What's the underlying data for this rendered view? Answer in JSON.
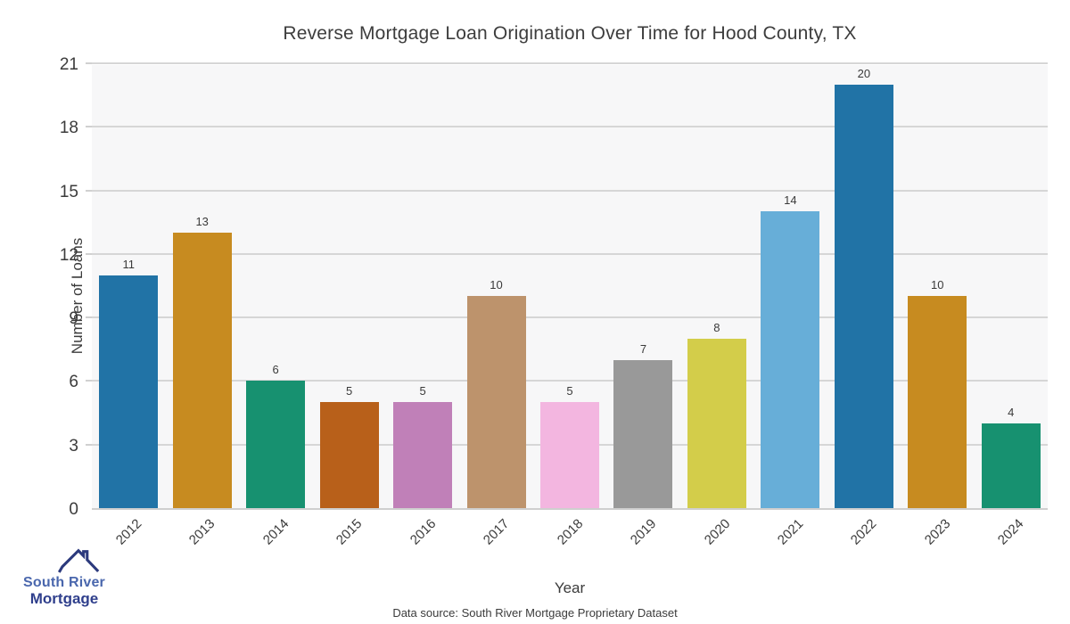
{
  "chart_data": {
    "type": "bar",
    "title": "Reverse Mortgage Loan Origination Over Time for Hood County, TX",
    "xlabel": "Year",
    "ylabel": "Number of Loans",
    "categories": [
      "2012",
      "2013",
      "2014",
      "2015",
      "2016",
      "2017",
      "2018",
      "2019",
      "2020",
      "2021",
      "2022",
      "2023",
      "2024"
    ],
    "values": [
      11,
      13,
      6,
      5,
      5,
      10,
      5,
      7,
      8,
      14,
      20,
      10,
      4
    ],
    "bar_colors": [
      "#2173a6",
      "#c78b20",
      "#179170",
      "#b8601a",
      "#c080b8",
      "#bd936c",
      "#f3b6e0",
      "#999999",
      "#d3cd4a",
      "#67aed8",
      "#2173a6",
      "#c78b20",
      "#179170"
    ],
    "ylim": [
      0,
      21
    ],
    "yticks": [
      0,
      3,
      6,
      9,
      12,
      15,
      18,
      21
    ],
    "grid": true,
    "legend": false,
    "value_labels_shown": true
  },
  "footer": {
    "source_text": "Data source: South River Mortgage Proprietary Dataset"
  },
  "logo": {
    "line1": "South River",
    "line2": "Mortgage",
    "icon": "house-roof-icon",
    "line1_color": "#4a67ad",
    "line2_color": "#2f3f8c",
    "icon_color": "#2c3a7d"
  },
  "colors": {
    "plot_background": "#f7f7f8",
    "gridline": "#d6d6d6",
    "text": "#3b3b3b"
  }
}
